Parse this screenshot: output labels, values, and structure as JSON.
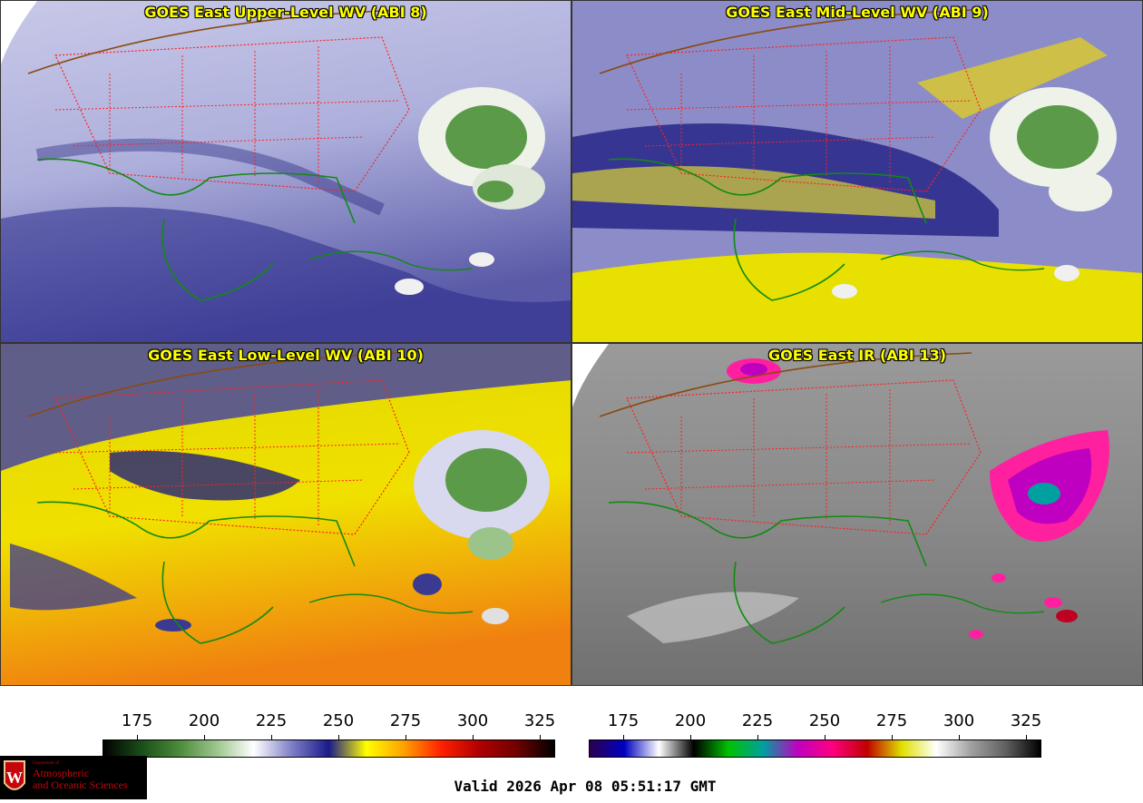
{
  "panels": [
    {
      "title": "GOES East Upper-Level WV (ABI 8)"
    },
    {
      "title": "GOES East Mid-Level WV (ABI 9)"
    },
    {
      "title": "GOES East Low-Level WV (ABI 10)"
    },
    {
      "title": "GOES East IR (ABI 13)"
    }
  ],
  "colorbar_wv": {
    "ticks": [
      "175",
      "200",
      "225",
      "250",
      "275",
      "300",
      "325"
    ],
    "colors": [
      "#000000",
      "#1a4d1a",
      "#4a8a3a",
      "#9cc48c",
      "#ffffff",
      "#8080c8",
      "#1a1a8a",
      "#ffff00",
      "#ffa000",
      "#ff2000",
      "#b00000",
      "#700000",
      "#000000"
    ]
  },
  "colorbar_ir": {
    "ticks": [
      "175",
      "200",
      "225",
      "250",
      "275",
      "300",
      "325"
    ],
    "colors": [
      "#2a0050",
      "#0000c0",
      "#ffffff",
      "#000000",
      "#00c000",
      "#00a0a0",
      "#c000c0",
      "#ff0080",
      "#c00000",
      "#e0e000",
      "#ffffff",
      "#a0a0a0",
      "#606060",
      "#000000"
    ]
  },
  "logo": {
    "line1": "Department of",
    "line2": "Atmospheric",
    "line3": "and Oceanic Sciences"
  },
  "valid": "Valid 2026 Apr 08 05:51:17 GMT",
  "colors": {
    "title": "#ffff00",
    "states": "#ff2020",
    "coast": "#128a12",
    "border": "#8a4a10"
  }
}
